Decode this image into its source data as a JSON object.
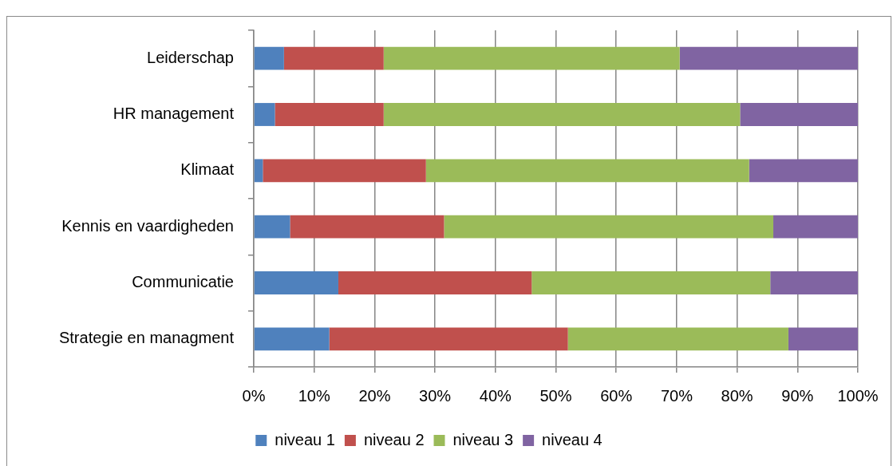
{
  "chart_data": {
    "type": "bar",
    "orientation": "horizontal",
    "stacked": true,
    "categories": [
      "Leiderschap",
      "HR management",
      "Klimaat",
      "Kennis en vaardigheden",
      "Communicatie",
      "Strategie en managment"
    ],
    "series": [
      {
        "name": "niveau 1",
        "color": "#4f81bd",
        "values": [
          5,
          3.5,
          1.5,
          6,
          14,
          12.5
        ]
      },
      {
        "name": "niveau 2",
        "color": "#c0504d",
        "values": [
          16.5,
          18,
          27,
          25.5,
          32,
          39.5
        ]
      },
      {
        "name": "niveau 3",
        "color": "#9bbb59",
        "values": [
          49,
          59,
          53.5,
          54.5,
          39.5,
          36.5
        ]
      },
      {
        "name": "niveau 4",
        "color": "#8064a2",
        "values": [
          29.5,
          19.5,
          18,
          14,
          14.5,
          11.5
        ]
      }
    ],
    "xlim": [
      0,
      100
    ],
    "xticks": [
      {
        "value": 0,
        "label": "0%"
      },
      {
        "value": 10,
        "label": "10%"
      },
      {
        "value": 20,
        "label": "20%"
      },
      {
        "value": 30,
        "label": "30%"
      },
      {
        "value": 40,
        "label": "40%"
      },
      {
        "value": 50,
        "label": "50%"
      },
      {
        "value": 60,
        "label": "60%"
      },
      {
        "value": 70,
        "label": "70%"
      },
      {
        "value": 80,
        "label": "80%"
      },
      {
        "value": 90,
        "label": "90%"
      },
      {
        "value": 100,
        "label": "100%"
      }
    ],
    "grid": "x",
    "legend": "bottom"
  }
}
